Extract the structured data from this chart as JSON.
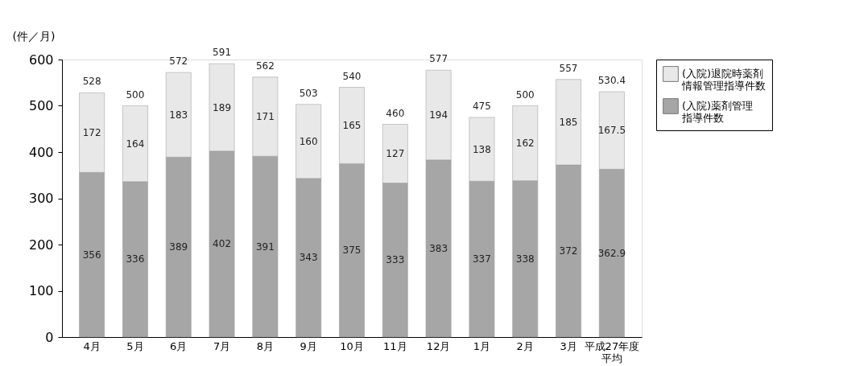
{
  "chart_data": {
    "type": "bar",
    "stacked": true,
    "ylabel": "(件／月)",
    "categories": [
      "4月",
      "5月",
      "6月",
      "7月",
      "8月",
      "9月",
      "10月",
      "11月",
      "12月",
      "1月",
      "2月",
      "3月",
      "平成27年度平均"
    ],
    "series": [
      {
        "name": "(入院)薬剤管理指導件数",
        "color": "#a6a6a6",
        "values": [
          356,
          336,
          389,
          402,
          391,
          343,
          375,
          333,
          383,
          337,
          338,
          372,
          362.9
        ]
      },
      {
        "name": "(入院)退院時薬剤情報管理指導件数",
        "color": "#e8e8e8",
        "values": [
          172,
          164,
          183,
          189,
          171,
          160,
          165,
          127,
          194,
          138,
          162,
          185,
          167.5
        ]
      }
    ],
    "totals": [
      "528",
      "500",
      "572",
      "591",
      "562",
      "503",
      "540",
      "460",
      "577",
      "475",
      "500",
      "557",
      "530.4"
    ],
    "ylim": [
      0,
      600
    ],
    "yticks": [
      0,
      100,
      200,
      300,
      400,
      500,
      600
    ],
    "data_labels": true,
    "grid": false,
    "legend": "right"
  }
}
